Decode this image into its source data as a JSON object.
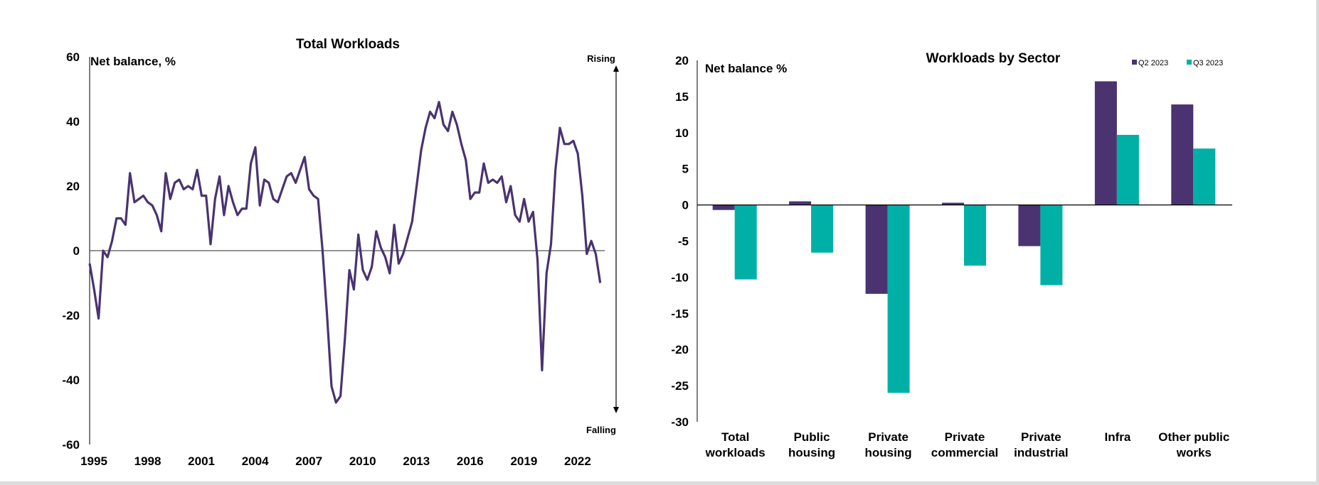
{
  "chart_data": [
    {
      "type": "line",
      "title": "Total Workloads",
      "ylabel": "Net balance, %",
      "ylim": [
        -60,
        60
      ],
      "yticks": [
        "60",
        "40",
        "20",
        "0",
        "-20",
        "-40",
        "-60"
      ],
      "xlim": [
        1995,
        2023.75
      ],
      "xticks": [
        "1995",
        "1998",
        "2001",
        "2004",
        "2007",
        "2010",
        "2013",
        "2016",
        "2019",
        "2022"
      ],
      "arrow_top_label": "Rising",
      "arrow_bottom_label": "Falling",
      "line_color": "#4a3370",
      "series": [
        {
          "x": [
            1995.0,
            1995.25,
            1995.5,
            1995.75,
            1996.0,
            1996.25,
            1996.5,
            1996.75,
            1997.0,
            1997.25,
            1997.5,
            1997.75,
            1998.0,
            1998.25,
            1998.5,
            1998.75,
            1999.0,
            1999.25,
            1999.5,
            1999.75,
            2000.0,
            2000.25,
            2000.5,
            2000.75,
            2001.0,
            2001.25,
            2001.5,
            2001.75,
            2002.0,
            2002.25,
            2002.5,
            2002.75,
            2003.0,
            2003.25,
            2003.5,
            2003.75,
            2004.0,
            2004.25,
            2004.5,
            2004.75,
            2005.0,
            2005.25,
            2005.5,
            2005.75,
            2006.0,
            2006.25,
            2006.5,
            2006.75,
            2007.0,
            2007.25,
            2007.5,
            2007.75,
            2008.0,
            2008.25,
            2008.5,
            2008.75,
            2009.0,
            2009.25,
            2009.5,
            2009.75,
            2010.0,
            2010.25,
            2010.5,
            2010.75,
            2011.0,
            2011.25,
            2011.5,
            2011.75,
            2012.0,
            2012.25,
            2012.5,
            2012.75,
            2013.0,
            2013.25,
            2013.5,
            2013.75,
            2014.0,
            2014.25,
            2014.5,
            2014.75,
            2015.0,
            2015.25,
            2015.5,
            2015.75,
            2016.0,
            2016.25,
            2016.5,
            2016.75,
            2017.0,
            2017.25,
            2017.5,
            2017.75,
            2018.0,
            2018.25,
            2018.5,
            2018.75,
            2019.0,
            2019.25,
            2019.5,
            2019.75,
            2020.0,
            2020.25,
            2020.5,
            2020.75,
            2021.0,
            2021.25,
            2021.5,
            2021.75,
            2022.0,
            2022.25,
            2022.5,
            2022.75,
            2023.0,
            2023.25,
            2023.5
          ],
          "y": [
            -4,
            -12,
            -21,
            0,
            -2,
            3,
            10,
            10,
            8,
            24,
            15,
            16,
            17,
            15,
            14,
            11,
            6,
            24,
            16,
            21,
            22,
            19,
            20,
            19,
            25,
            17,
            17,
            2,
            16,
            23,
            11,
            20,
            15,
            11,
            13,
            13,
            27,
            32,
            14,
            22,
            21,
            16,
            15,
            19,
            23,
            24,
            21,
            25,
            29,
            19,
            17,
            16,
            0,
            -20,
            -42,
            -47,
            -45,
            -27,
            -6,
            -12,
            5,
            -6,
            -9,
            -5,
            6,
            1,
            -2,
            -7,
            8,
            -4,
            -1,
            4,
            9,
            20,
            31,
            38,
            43,
            41,
            46,
            39,
            37,
            43,
            39,
            33,
            28,
            16,
            18,
            18,
            27,
            21,
            22,
            21,
            23,
            15,
            20,
            11,
            9,
            16,
            9,
            12,
            -3,
            -37,
            -7,
            2,
            25,
            38,
            33,
            33,
            34,
            30,
            17,
            -1,
            3,
            -1,
            -10
          ]
        }
      ]
    },
    {
      "type": "bar",
      "title": "Workloads by Sector",
      "ylabel": "Net balance %",
      "ylim": [
        -30,
        20
      ],
      "yticks": [
        "20",
        "15",
        "10",
        "5",
        "0",
        "-5",
        "-10",
        "-15",
        "-20",
        "-25",
        "-30"
      ],
      "categories": [
        [
          "Total",
          "workloads"
        ],
        [
          "Public",
          "housing"
        ],
        [
          "Private",
          "housing"
        ],
        [
          "Private",
          "commercial"
        ],
        [
          "Private",
          "industrial"
        ],
        [
          "Infra"
        ],
        [
          "Other public",
          "works"
        ]
      ],
      "series": [
        {
          "name": "Q2 2023",
          "color": "#4a3370",
          "values": [
            -0.7,
            0.5,
            -12.3,
            0.3,
            -5.7,
            17.1,
            13.9
          ]
        },
        {
          "name": "Q3 2023",
          "color": "#00b0a6",
          "values": [
            -10.3,
            -6.6,
            -26.0,
            -8.4,
            -11.1,
            9.7,
            7.8
          ]
        }
      ]
    }
  ]
}
